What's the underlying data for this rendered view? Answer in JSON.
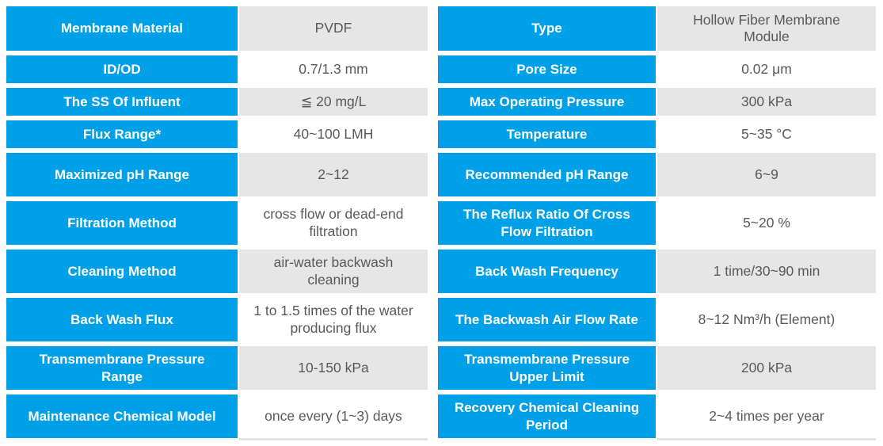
{
  "colors": {
    "header_blue": "#00A0E9",
    "value_shade_gray": "#E6E6E6",
    "value_white": "#FFFFFF",
    "label_text": "#FFFFFF",
    "value_text": "#58595B"
  },
  "table": {
    "rows": [
      {
        "label1": "Membrane Material",
        "value1": "PVDF",
        "label2": "Type",
        "value2": "Hollow Fiber Membrane Module"
      },
      {
        "label1": "ID/OD",
        "value1": "0.7/1.3 mm",
        "label2": "Pore Size",
        "value2": "0.02 μm"
      },
      {
        "label1": "The SS Of Influent",
        "value1": "≦ 20 mg/L",
        "label2": "Max Operating Pressure",
        "value2": "300 kPa"
      },
      {
        "label1": "Flux Range*",
        "value1": "40~100 LMH",
        "label2": "Temperature",
        "value2": "5~35 °C"
      },
      {
        "label1": "Maximized pH Range",
        "value1": "2~12",
        "label2": "Recommended pH Range",
        "value2": "6~9"
      },
      {
        "label1": "Filtration Method",
        "value1": "cross flow or dead-end filtration",
        "label2": "The Reflux Ratio Of Cross Flow Filtration",
        "value2": "5~20 %"
      },
      {
        "label1": "Cleaning Method",
        "value1": "air-water backwash cleaning",
        "label2": "Back Wash Frequency",
        "value2": "1 time/30~90 min"
      },
      {
        "label1": "Back Wash Flux",
        "value1": "1 to 1.5 times of the water producing flux",
        "label2": "The Backwash Air Flow Rate",
        "value2": "8~12 Nm³/h (Element)"
      },
      {
        "label1": "Transmembrane Pressure Range",
        "value1": "10-150 kPa",
        "label2": "Transmembrane Pressure Upper Limit",
        "value2": "200 kPa"
      },
      {
        "label1": "Maintenance Chemical Model",
        "value1": "once every (1~3) days",
        "label2": "Recovery Chemical Cleaning Period",
        "value2": "2~4 times per year"
      }
    ]
  }
}
